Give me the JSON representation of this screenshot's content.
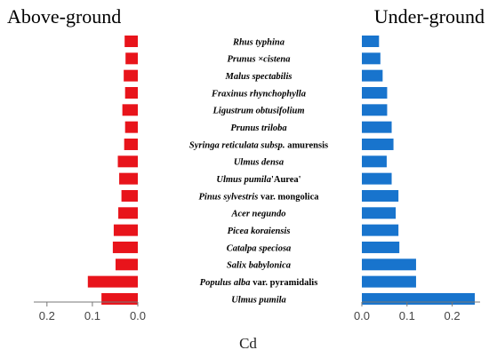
{
  "chart_data": {
    "type": "bar",
    "orientation": "horizontal",
    "xlabel": "Cd",
    "categories": [
      "Rhus typhina",
      "Prunus ×cistena",
      "Malus spectabilis",
      "Fraxinus rhynchophylla",
      "Ligustrum obtusifolium",
      "Prunus triloba",
      "Syringa reticulata subsp. amurensis",
      "Ulmus densa",
      "Ulmus pumila'Aurea'",
      "Pinus sylvestris var. mongolica",
      "Acer negundo",
      "Picea koraiensis",
      "Catalpa speciosa",
      "Salix babylonica",
      "Populus alba var. pyramidalis",
      "Ulmus pumila"
    ],
    "series": [
      {
        "name": "Above-ground",
        "color": "#e8141b",
        "direction": "leftward",
        "xlim": [
          0,
          0.28
        ],
        "ticks": [
          0.2,
          0.1,
          0.0
        ],
        "tick_labels": [
          "0.2",
          "0.1",
          "0.0"
        ],
        "values": [
          0.029,
          0.027,
          0.031,
          0.028,
          0.034,
          0.028,
          0.03,
          0.044,
          0.041,
          0.036,
          0.043,
          0.053,
          0.055,
          0.049,
          0.11,
          0.08
        ]
      },
      {
        "name": "Under-ground",
        "color": "#1874cd",
        "direction": "rightward",
        "xlim": [
          0,
          0.27
        ],
        "ticks": [
          0.0,
          0.1,
          0.2
        ],
        "tick_labels": [
          "0.0",
          "0.1",
          "0.2"
        ],
        "values": [
          0.038,
          0.041,
          0.046,
          0.056,
          0.056,
          0.066,
          0.07,
          0.055,
          0.066,
          0.081,
          0.075,
          0.081,
          0.083,
          0.12,
          0.12,
          0.25
        ]
      }
    ]
  }
}
